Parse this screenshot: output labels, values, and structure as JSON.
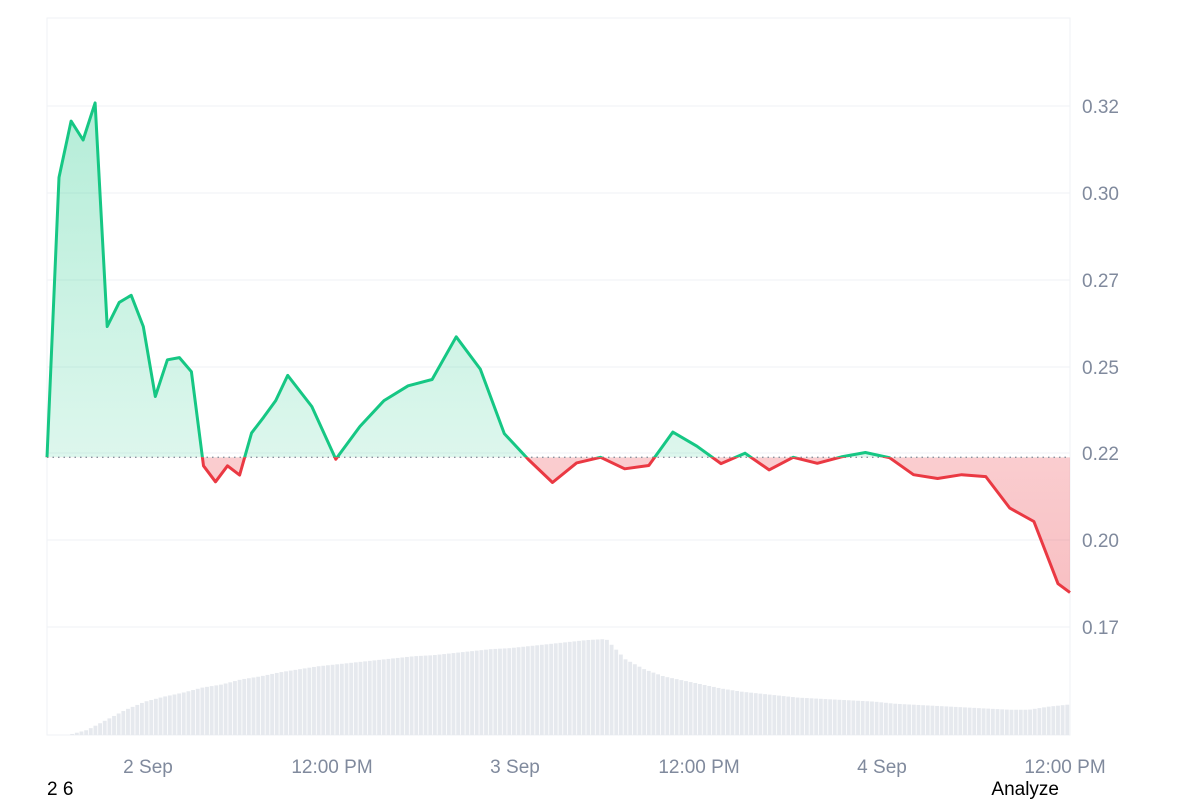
{
  "colors": {
    "up": "#16c784",
    "down": "#ea3943",
    "grid": "#eff2f5",
    "tick_text": "#808a9d",
    "volume": "#e6e9ee",
    "baseline": "#8a919e"
  },
  "footer": {
    "left_text": "2 6",
    "right_text": "Analyze"
  },
  "chart_data": {
    "type": "area",
    "title": "",
    "xlabel": "",
    "ylabel": "",
    "baseline": 0.2227,
    "ylim": [
      0.1478,
      0.3412
    ],
    "y_ticks": [
      "0.32",
      "0.30",
      "0.27",
      "0.25",
      "0.22",
      "0.20",
      "0.17"
    ],
    "x_ticks": [
      "2 Sep",
      "12:00 PM",
      "3 Sep",
      "12:00 PM",
      "4 Sep",
      "12:00 PM"
    ],
    "grid": true,
    "legend": "none",
    "x": [
      0,
      0.8,
      1.6,
      2.4,
      3.2,
      4.0,
      4.8,
      5.6,
      6.4,
      7.2,
      8.0,
      8.8,
      9.6,
      10.4,
      11.2,
      12.0,
      12.8,
      13.6,
      14.4,
      15.2,
      16.0,
      17.6,
      19.2,
      20.8,
      22.4,
      24.0,
      25.6,
      27.2,
      28.8,
      30.4,
      32.0,
      33.6,
      35.2,
      36.8,
      38.4,
      40.0,
      41.6,
      43.2,
      44.8,
      46.4,
      48.0,
      49.6,
      51.2,
      52.8,
      54.4,
      56.0,
      57.6,
      59.2,
      60.8,
      62.4,
      64.0,
      65.6,
      67.2,
      68.0
    ],
    "price": [
      0.2227,
      0.2982,
      0.3134,
      0.3083,
      0.3183,
      0.258,
      0.2645,
      0.2664,
      0.258,
      0.2391,
      0.249,
      0.2496,
      0.2458,
      0.2204,
      0.2161,
      0.2204,
      0.2179,
      0.2293,
      0.2335,
      0.238,
      0.2448,
      0.2364,
      0.2222,
      0.231,
      0.238,
      0.242,
      0.2437,
      0.2552,
      0.2465,
      0.2291,
      0.2221,
      0.2159,
      0.2212,
      0.2227,
      0.2196,
      0.2205,
      0.2295,
      0.2257,
      0.221,
      0.2238,
      0.2193,
      0.2227,
      0.2211,
      0.2228,
      0.224,
      0.2226,
      0.218,
      0.217,
      0.218,
      0.2175,
      0.209,
      0.2054,
      0.1886,
      0.1862
    ],
    "volume": [
      0,
      0,
      0.05,
      0.15,
      0.25,
      0.33,
      0.38,
      0.42,
      0.47,
      0.5,
      0.55,
      0.58,
      0.62,
      0.65,
      0.68,
      0.7,
      0.72,
      0.74,
      0.76,
      0.78,
      0.79,
      0.81,
      0.83,
      0.85,
      0.86,
      0.88,
      0.9,
      0.92,
      0.94,
      0.95,
      0.75,
      0.65,
      0.58,
      0.54,
      0.5,
      0.46,
      0.43,
      0.41,
      0.39,
      0.37,
      0.36,
      0.35,
      0.34,
      0.33,
      0.31,
      0.3,
      0.29,
      0.28,
      0.27,
      0.26,
      0.25,
      0.25,
      0.28,
      0.3
    ]
  }
}
